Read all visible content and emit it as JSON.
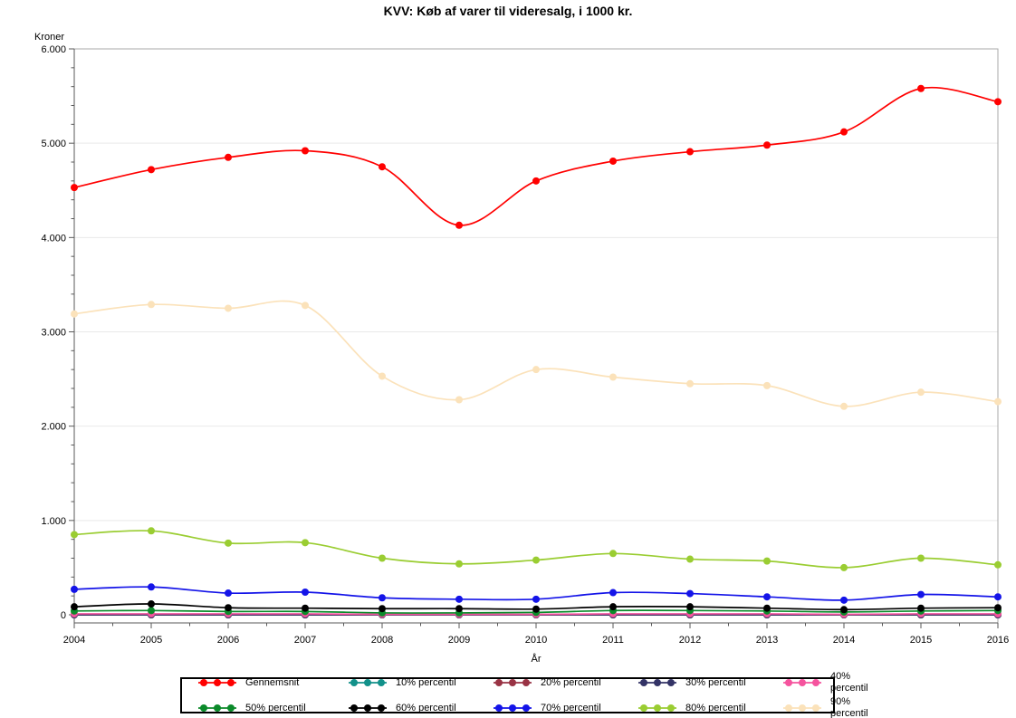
{
  "title": "KVV: Køb af varer til videresalg, i 1000 kr.",
  "colors": {
    "background": "#ffffff",
    "grid": "#e9e9e9",
    "frame": "#a9a9a9",
    "axis": "#5a5a5a",
    "legend_border": "#000000"
  },
  "chart_data": {
    "type": "line",
    "title": "KVV: Køb af varer til videresalg, i 1000 kr.",
    "ylabel": "Kroner",
    "xlabel": "År",
    "x": [
      2004,
      2005,
      2006,
      2007,
      2008,
      2009,
      2010,
      2011,
      2012,
      2013,
      2014,
      2015,
      2016
    ],
    "x_tick_labels": [
      "2004",
      "2005",
      "2006",
      "2007",
      "2008",
      "2009",
      "2010",
      "2011",
      "2012",
      "2013",
      "2014",
      "2015",
      "2016"
    ],
    "ylim": [
      0,
      6000
    ],
    "y_major_ticks": [
      0,
      1000,
      2000,
      3000,
      4000,
      5000,
      6000
    ],
    "y_tick_labels": [
      "0",
      "1.000",
      "2.000",
      "3.000",
      "4.000",
      "5.000",
      "6.000"
    ],
    "y_minor_step": 200,
    "grid": "horizontal-major",
    "legend_position": "bottom",
    "line_style": "smooth-spline-with-markers",
    "series": [
      {
        "name": "Gennemsnit",
        "color": "#ff0000",
        "values": [
          4530,
          4720,
          4850,
          4920,
          4750,
          4130,
          4600,
          4810,
          4910,
          4980,
          5120,
          5580,
          5440
        ]
      },
      {
        "name": "10% percentil",
        "color": "#12918a",
        "values": [
          0,
          0,
          0,
          0,
          0,
          0,
          0,
          0,
          0,
          0,
          0,
          0,
          0
        ]
      },
      {
        "name": "20% percentil",
        "color": "#993344",
        "values": [
          0,
          0,
          0,
          0,
          0,
          0,
          0,
          0,
          0,
          0,
          0,
          0,
          0
        ]
      },
      {
        "name": "30% percentil",
        "color": "#333366",
        "values": [
          0,
          0,
          0,
          0,
          0,
          0,
          0,
          0,
          0,
          0,
          0,
          0,
          0
        ]
      },
      {
        "name": "40% percentil",
        "color": "#f5549e",
        "values": [
          10,
          10,
          10,
          10,
          5,
          5,
          5,
          10,
          10,
          10,
          5,
          10,
          10
        ]
      },
      {
        "name": "50% percentil",
        "color": "#0b8a2a",
        "values": [
          40,
          45,
          35,
          35,
          20,
          20,
          25,
          45,
          45,
          40,
          30,
          40,
          45
        ]
      },
      {
        "name": "60% percentil",
        "color": "#000000",
        "values": [
          85,
          115,
          75,
          70,
          65,
          65,
          60,
          85,
          85,
          70,
          55,
          70,
          75
        ]
      },
      {
        "name": "70% percentil",
        "color": "#1414e8",
        "values": [
          270,
          295,
          230,
          240,
          180,
          165,
          165,
          235,
          225,
          190,
          155,
          215,
          190
        ]
      },
      {
        "name": "80% percentil",
        "color": "#9acd32",
        "values": [
          850,
          890,
          760,
          765,
          600,
          540,
          580,
          650,
          590,
          570,
          500,
          600,
          530
        ]
      },
      {
        "name": "90% percentil",
        "color": "#fbe2ba",
        "values": [
          3190,
          3290,
          3250,
          3280,
          2530,
          2280,
          2600,
          2520,
          2450,
          2430,
          2210,
          2360,
          2260
        ]
      }
    ]
  }
}
